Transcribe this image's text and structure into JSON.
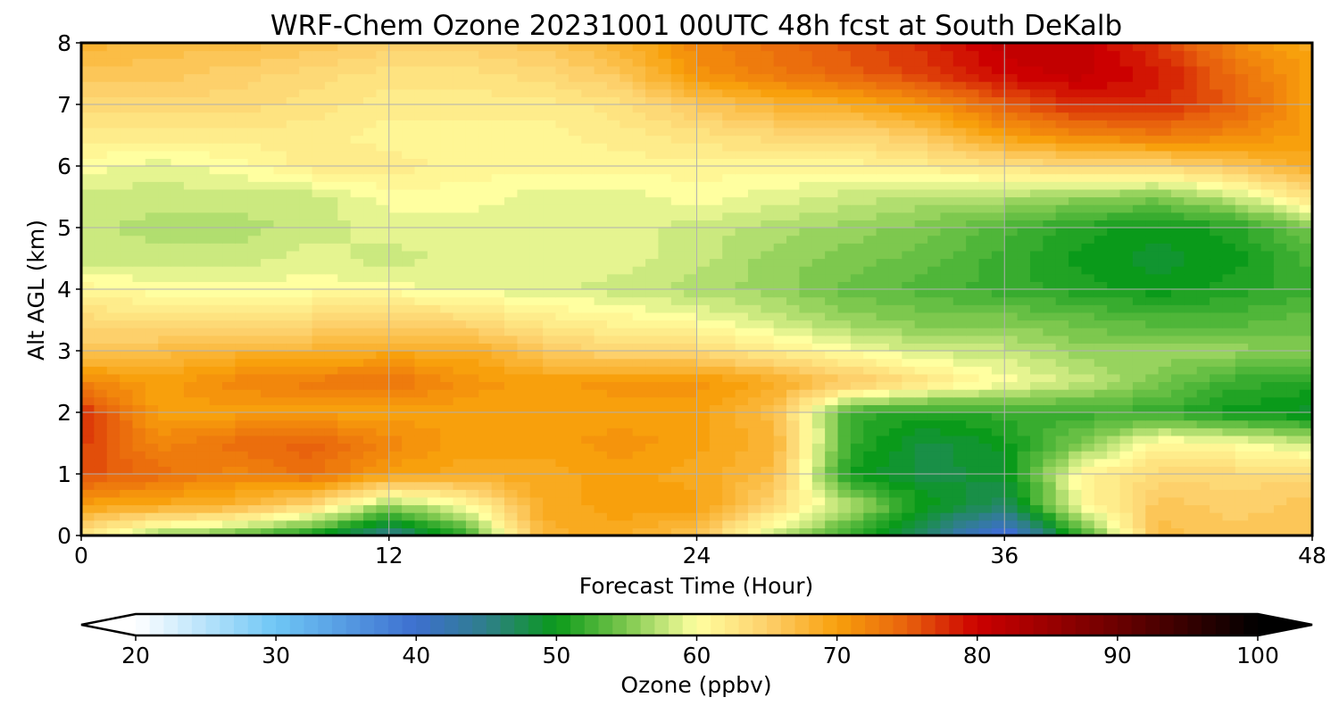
{
  "chart_data": {
    "type": "heatmap",
    "title": "WRF-Chem Ozone  20231001 00UTC 48h fcst at South DeKalb",
    "xlabel": "Forecast Time (Hour)",
    "ylabel": "Alt AGL (km)",
    "xlim": [
      0,
      48
    ],
    "ylim": [
      0,
      8
    ],
    "xticks": [
      0,
      12,
      24,
      36,
      48
    ],
    "yticks": [
      0,
      1,
      2,
      3,
      4,
      5,
      6,
      7,
      8
    ],
    "grid": true,
    "x": [
      0,
      3,
      6,
      9,
      12,
      15,
      18,
      21,
      24,
      27,
      30,
      33,
      36,
      39,
      42,
      45,
      48
    ],
    "y": [
      0,
      0.5,
      1,
      1.5,
      2,
      2.5,
      3,
      3.5,
      4,
      4.5,
      5,
      5.5,
      6,
      6.5,
      7,
      7.5,
      8
    ],
    "z": [
      [
        62,
        56,
        54,
        50,
        44,
        52,
        68,
        69,
        66,
        58,
        52,
        46,
        38,
        52,
        67,
        66,
        66
      ],
      [
        70,
        69,
        68,
        64,
        56,
        60,
        69,
        70,
        70,
        64,
        57,
        50,
        47,
        60,
        66,
        65,
        66
      ],
      [
        76,
        74,
        72,
        74,
        70,
        69,
        69,
        70,
        69,
        67,
        50,
        48,
        49,
        61,
        64,
        64,
        64
      ],
      [
        77,
        72,
        74,
        75,
        72,
        70,
        70,
        71,
        70,
        68,
        52,
        48,
        50,
        55,
        61,
        60,
        58
      ],
      [
        78,
        70,
        70,
        70,
        70,
        70,
        70,
        70,
        70,
        67,
        52,
        51,
        52,
        52,
        52,
        50,
        49
      ],
      [
        72,
        70,
        72,
        73,
        74,
        71,
        70,
        71,
        71,
        69,
        66,
        63,
        60,
        58,
        55,
        52,
        51
      ],
      [
        66,
        67,
        68,
        68,
        69,
        69,
        66,
        64,
        64,
        62,
        60,
        58,
        58,
        56,
        56,
        56,
        55
      ],
      [
        64,
        63,
        63,
        64,
        65,
        64,
        62,
        61,
        60,
        58,
        56,
        55,
        55,
        54,
        53,
        53,
        54
      ],
      [
        61,
        60,
        60,
        60,
        60,
        59,
        59,
        58,
        57,
        56,
        54,
        53,
        52,
        51,
        50,
        51,
        52
      ],
      [
        58,
        58,
        58,
        59,
        58,
        59,
        59,
        59,
        58,
        56,
        55,
        54,
        52,
        50,
        49,
        50,
        53
      ],
      [
        58,
        57,
        57,
        58,
        59,
        59,
        59,
        59,
        58,
        57,
        56,
        55,
        53,
        51,
        50,
        51,
        55
      ],
      [
        58,
        58,
        58,
        58,
        60,
        60,
        59,
        59,
        60,
        59,
        58,
        57,
        57,
        56,
        55,
        58,
        63
      ],
      [
        60,
        59,
        60,
        62,
        62,
        61,
        61,
        61,
        61,
        61,
        61,
        62,
        63,
        64,
        64,
        66,
        69
      ],
      [
        62,
        62,
        62,
        62,
        61,
        61,
        61,
        62,
        63,
        64,
        64,
        66,
        70,
        72,
        73,
        72,
        70
      ],
      [
        64,
        64,
        64,
        63,
        62,
        62,
        62,
        63,
        66,
        68,
        69,
        71,
        75,
        78,
        78,
        75,
        70
      ],
      [
        66,
        66,
        65,
        64,
        63,
        63,
        64,
        66,
        71,
        73,
        75,
        77,
        80,
        81,
        79,
        74,
        70
      ],
      [
        68,
        67,
        67,
        66,
        65,
        65,
        66,
        68,
        72,
        74,
        76,
        78,
        81,
        81,
        77,
        72,
        69
      ]
    ],
    "colorbar": {
      "label": "Ozone  (ppbv)",
      "min": 20,
      "max": 100,
      "ticks": [
        "20",
        "30",
        "40",
        "50",
        "60",
        "70",
        "80",
        "90",
        "100"
      ],
      "extend": "both",
      "stops": [
        [
          20,
          "#ffffff"
        ],
        [
          30,
          "#6ec6f5"
        ],
        [
          40,
          "#3d6fcf"
        ],
        [
          45,
          "#2f7f8a"
        ],
        [
          50,
          "#0a9a1a"
        ],
        [
          55,
          "#7dc84e"
        ],
        [
          60,
          "#ffffa0"
        ],
        [
          65,
          "#fdd06b"
        ],
        [
          70,
          "#f8a00c"
        ],
        [
          75,
          "#e8620d"
        ],
        [
          80,
          "#cc0000"
        ],
        [
          90,
          "#6b0000"
        ],
        [
          100,
          "#000000"
        ]
      ]
    }
  }
}
